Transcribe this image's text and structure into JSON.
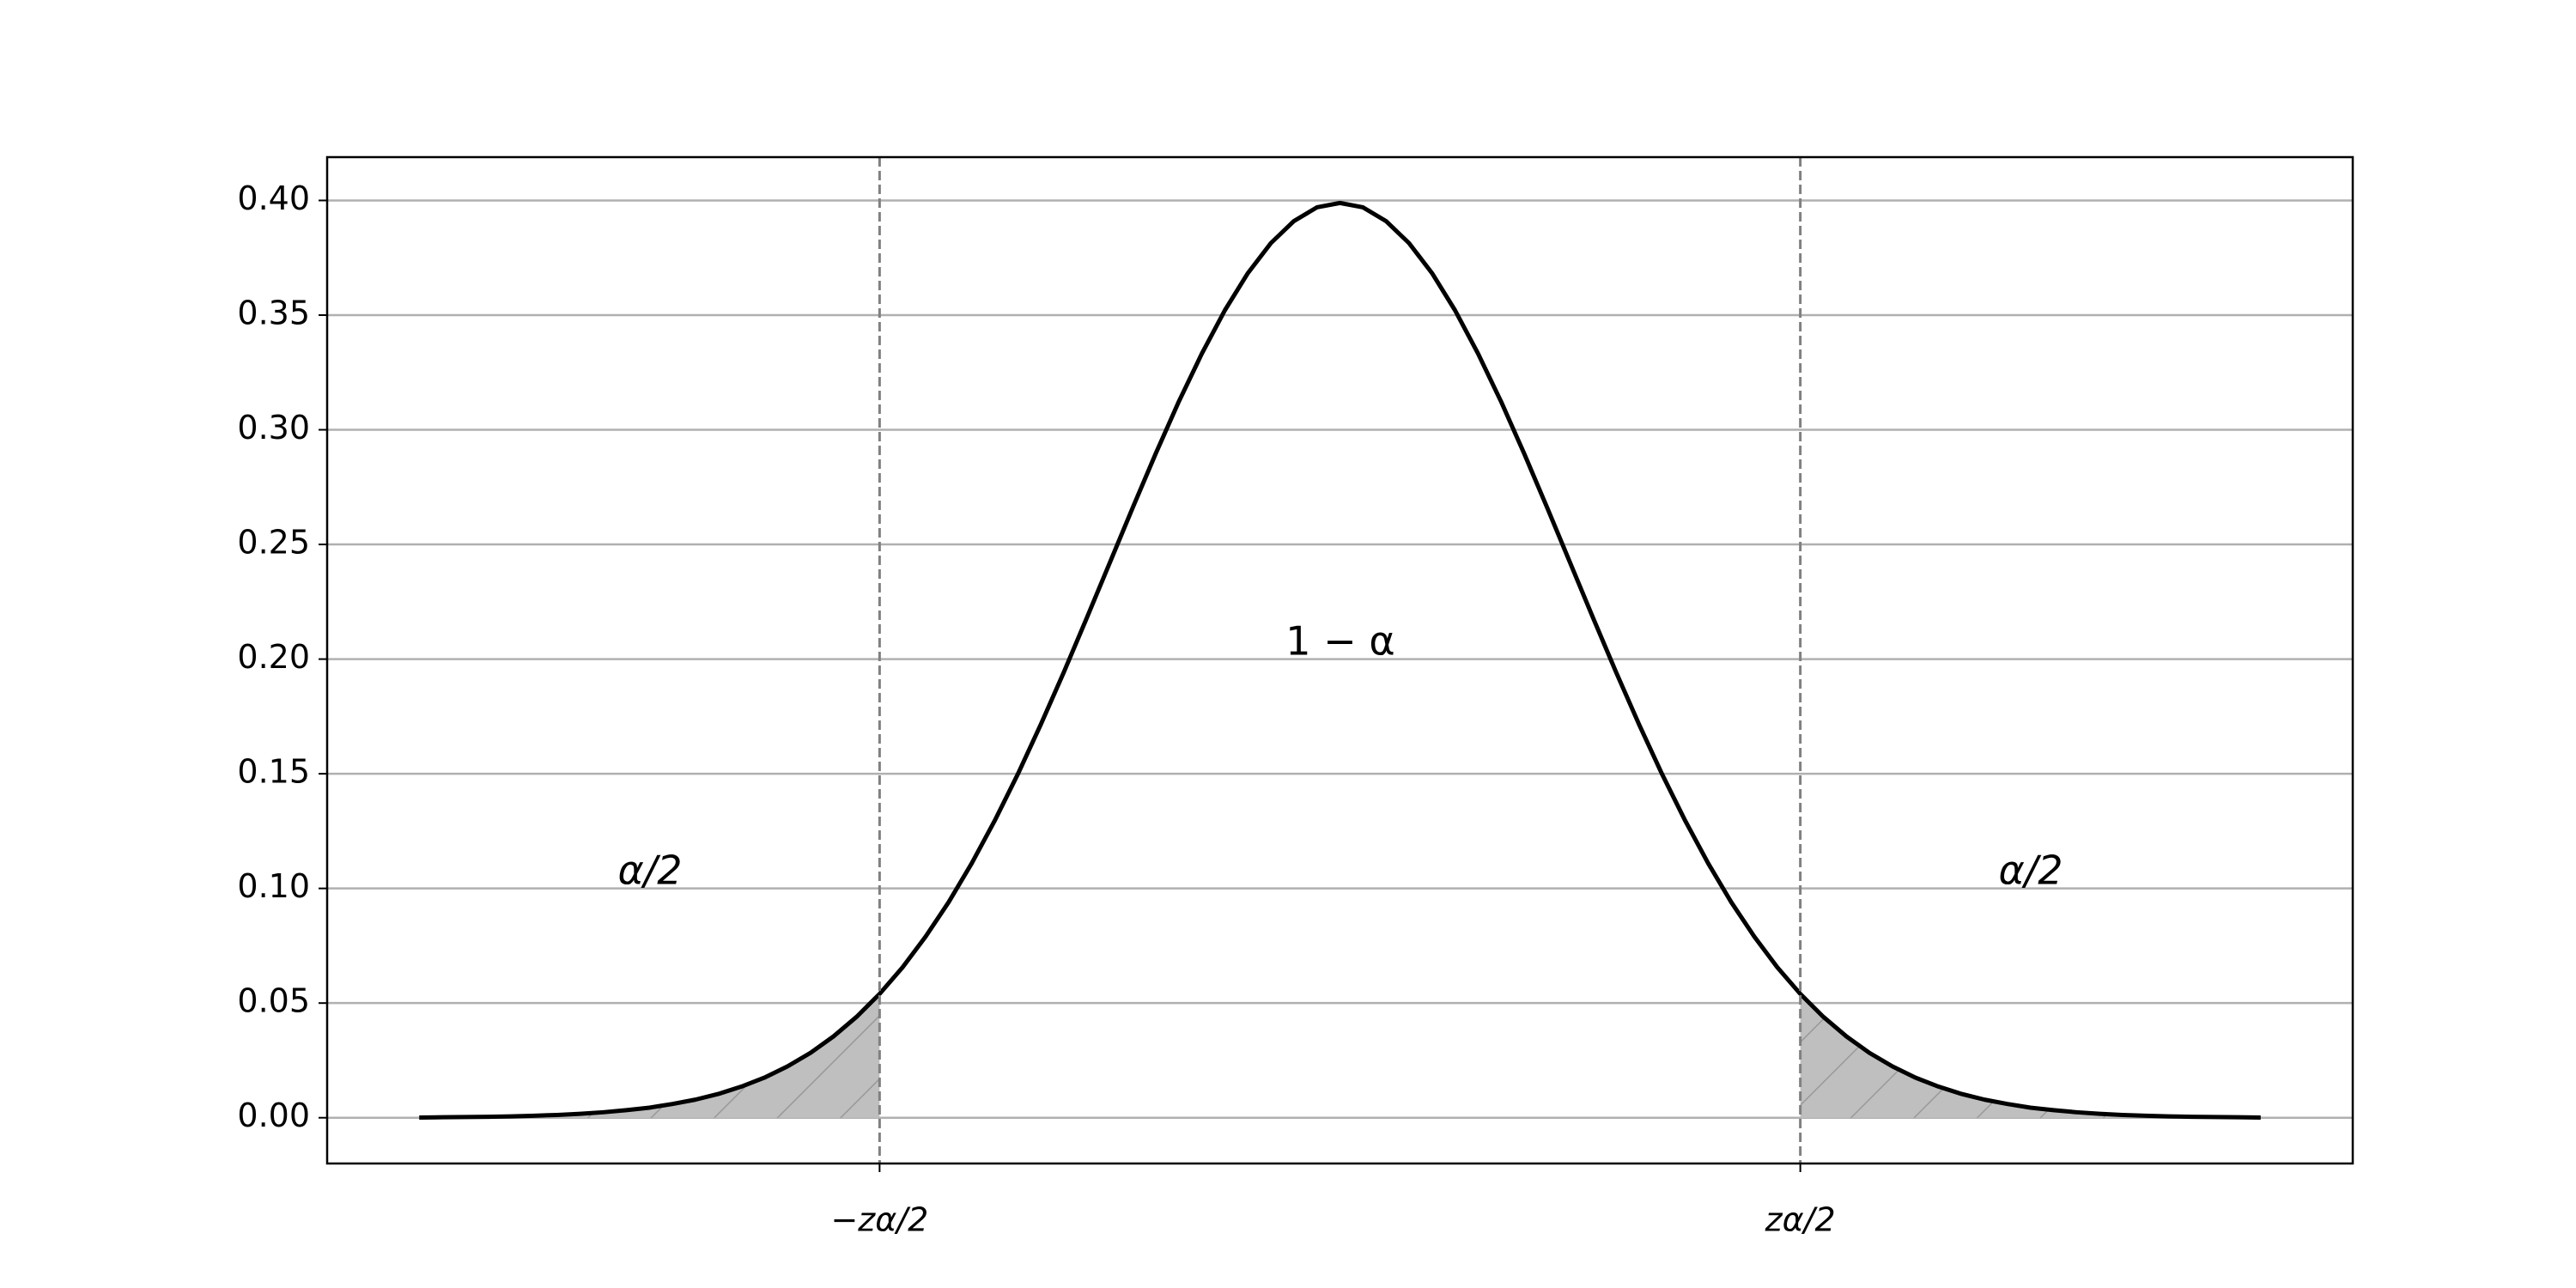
{
  "chart_data": {
    "type": "line",
    "x": [
      -4.0,
      -3.9,
      -3.8,
      -3.7,
      -3.6,
      -3.5,
      -3.4,
      -3.3,
      -3.2,
      -3.1,
      -3.0,
      -2.9,
      -2.8,
      -2.7,
      -2.6,
      -2.5,
      -2.4,
      -2.3,
      -2.2,
      -2.1,
      -2.0,
      -1.9,
      -1.8,
      -1.7,
      -1.6,
      -1.5,
      -1.4,
      -1.3,
      -1.2,
      -1.1,
      -1.0,
      -0.9,
      -0.8,
      -0.7,
      -0.6,
      -0.5,
      -0.4,
      -0.3,
      -0.2,
      -0.1,
      0.0,
      0.1,
      0.2,
      0.3,
      0.4,
      0.5,
      0.6,
      0.7,
      0.8,
      0.9,
      1.0,
      1.1,
      1.2,
      1.3,
      1.4,
      1.5,
      1.6,
      1.7,
      1.8,
      1.9,
      2.0,
      2.1,
      2.2,
      2.3,
      2.4,
      2.5,
      2.6,
      2.7,
      2.8,
      2.9,
      3.0,
      3.1,
      3.2,
      3.3,
      3.4,
      3.5,
      3.6,
      3.7,
      3.8,
      3.9,
      4.0
    ],
    "series": [
      {
        "color": "#000000",
        "values": [
          0.0001,
          0.0002,
          0.0003,
          0.0004,
          0.0006,
          0.0009,
          0.0012,
          0.0017,
          0.0024,
          0.0033,
          0.0044,
          0.006,
          0.0079,
          0.0104,
          0.0136,
          0.0175,
          0.0224,
          0.0283,
          0.0355,
          0.044,
          0.054,
          0.0656,
          0.079,
          0.094,
          0.1109,
          0.1295,
          0.1497,
          0.1714,
          0.1942,
          0.2179,
          0.242,
          0.2661,
          0.2897,
          0.3123,
          0.3332,
          0.3521,
          0.3683,
          0.3814,
          0.391,
          0.397,
          0.3989,
          0.397,
          0.391,
          0.3814,
          0.3683,
          0.3521,
          0.3332,
          0.3123,
          0.2897,
          0.2661,
          0.242,
          0.2179,
          0.1942,
          0.1714,
          0.1497,
          0.1295,
          0.1109,
          0.094,
          0.079,
          0.0656,
          0.054,
          0.044,
          0.0355,
          0.0283,
          0.0224,
          0.0175,
          0.0136,
          0.0104,
          0.0079,
          0.006,
          0.0044,
          0.0033,
          0.0024,
          0.0017,
          0.0012,
          0.0009,
          0.0006,
          0.0004,
          0.0003,
          0.0002,
          0.0001
        ]
      }
    ],
    "xlim": [
      -4.4,
      4.4
    ],
    "xticks": [
      {
        "value": -2.0,
        "label": "−zα/2"
      },
      {
        "value": 2.0,
        "label": "zα/2"
      }
    ],
    "ylim": [
      -0.01995,
      0.41889
    ],
    "yticks": [
      {
        "value": 0,
        "label": "0.00"
      },
      {
        "value": 0.05,
        "label": "0.05"
      },
      {
        "value": 0.1,
        "label": "0.10"
      },
      {
        "value": 0.15,
        "label": "0.15"
      },
      {
        "value": 0.2,
        "label": "0.20"
      },
      {
        "value": 0.25,
        "label": "0.25"
      },
      {
        "value": 0.3,
        "label": "0.30"
      },
      {
        "value": 0.35,
        "label": "0.35"
      },
      {
        "value": 0.4,
        "label": "0.40"
      }
    ],
    "grid": {
      "x": "dashed",
      "y": "solid"
    },
    "shade": "tails",
    "shade_color": "#bfbfbf",
    "annotations": [
      "α/2",
      "1 − α",
      "α/2"
    ]
  }
}
